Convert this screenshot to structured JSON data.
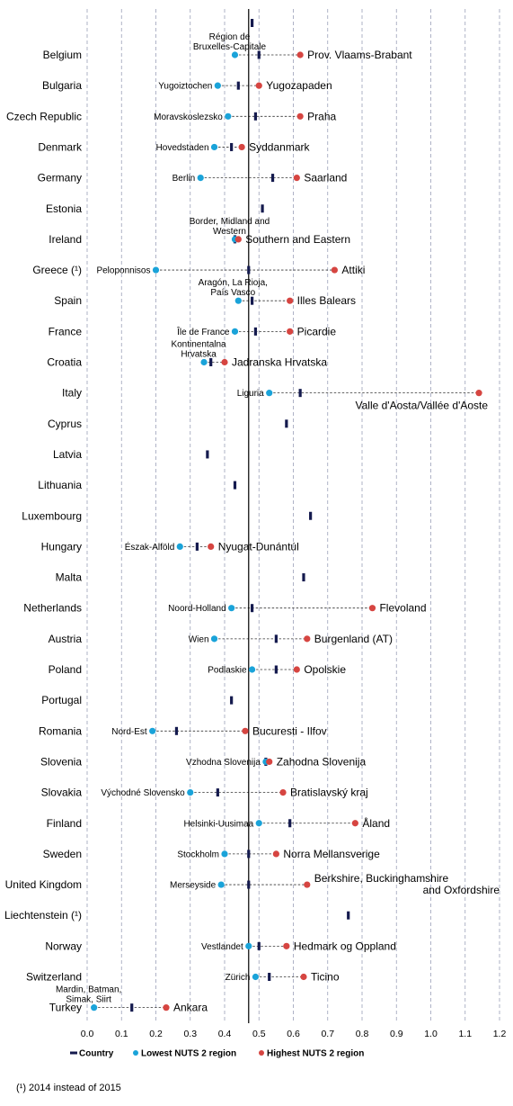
{
  "chart_data": {
    "type": "scatter",
    "xlim": [
      0,
      1.2
    ],
    "xticks": [
      "0.0",
      "0.1",
      "0.2",
      "0.3",
      "0.4",
      "0.5",
      "0.6",
      "0.7",
      "0.8",
      "0.9",
      "1.0",
      "1.1",
      "1.2"
    ],
    "grid": true,
    "reference_line": 0.47,
    "top_marker": 0.48,
    "legend": {
      "position": "bottom",
      "items": [
        {
          "label": "Country",
          "marker": "bar"
        },
        {
          "label": "Lowest NUTS 2 region",
          "marker": "dot",
          "color": "#1aa3d9"
        },
        {
          "label": "Highest NUTS 2 region",
          "marker": "dot",
          "color": "#d64541"
        }
      ]
    },
    "footnote": "(¹)  2014 instead of 2015",
    "series": [
      {
        "country": "Belgium",
        "value": 0.5,
        "low": 0.43,
        "low_region": [
          "Région de",
          "Bruxelles-Capitale"
        ],
        "high": 0.62,
        "high_region": [
          "Prov. Vlaams-Brabant"
        ]
      },
      {
        "country": "Bulgaria",
        "value": 0.44,
        "low": 0.38,
        "low_region": [
          "Yugoiztochen"
        ],
        "high": 0.5,
        "high_region": [
          "Yugozapaden"
        ]
      },
      {
        "country": "Czech Republic",
        "value": 0.49,
        "low": 0.41,
        "low_region": [
          "Moravskoslezsko"
        ],
        "high": 0.62,
        "high_region": [
          "Praha"
        ]
      },
      {
        "country": "Denmark",
        "value": 0.42,
        "low": 0.37,
        "low_region": [
          "Hovedstaden"
        ],
        "high": 0.45,
        "high_region": [
          "Syddanmark"
        ]
      },
      {
        "country": "Germany",
        "value": 0.54,
        "low": 0.33,
        "low_region": [
          "Berlin"
        ],
        "high": 0.61,
        "high_region": [
          "Saarland"
        ]
      },
      {
        "country": "Estonia",
        "value": 0.51
      },
      {
        "country": "Ireland",
        "value": 0.43,
        "low": 0.43,
        "low_region": [
          "Border, Midland  and",
          "Western"
        ],
        "high": 0.44,
        "high_region": [
          "Southern and Eastern"
        ]
      },
      {
        "country": "Greece (¹)",
        "value": 0.47,
        "low": 0.2,
        "low_region": [
          "Peloponnisos"
        ],
        "high": 0.72,
        "high_region": [
          "Attiki"
        ]
      },
      {
        "country": "Spain",
        "value": 0.48,
        "low": 0.44,
        "low_region": [
          "Aragón, La Rioja,",
          "País Vasco"
        ],
        "high": 0.59,
        "high_region": [
          "Illes Balears"
        ]
      },
      {
        "country": "France",
        "value": 0.49,
        "low": 0.43,
        "low_region": [
          "Île de France"
        ],
        "high": 0.59,
        "high_region": [
          "Picardie"
        ]
      },
      {
        "country": "Croatia",
        "value": 0.36,
        "low": 0.34,
        "low_region": [
          "Kontinentalna",
          "Hrvatska"
        ],
        "high": 0.4,
        "high_region": [
          "Jadranska Hrvatska"
        ]
      },
      {
        "country": "Italy",
        "value": 0.62,
        "low": 0.53,
        "low_region": [
          "Liguria"
        ],
        "high": 1.14,
        "high_region": [
          "Valle d'Aosta/Vallée d'Aoste"
        ]
      },
      {
        "country": "Cyprus",
        "value": 0.58
      },
      {
        "country": "Latvia",
        "value": 0.35
      },
      {
        "country": "Lithuania",
        "value": 0.43
      },
      {
        "country": "Luxembourg",
        "value": 0.65
      },
      {
        "country": "Hungary",
        "value": 0.32,
        "low": 0.27,
        "low_region": [
          "Észak-Alföld"
        ],
        "high": 0.36,
        "high_region": [
          "Nyugat-Dunántúl"
        ]
      },
      {
        "country": "Malta",
        "value": 0.63
      },
      {
        "country": "Netherlands",
        "value": 0.48,
        "low": 0.42,
        "low_region": [
          "Noord-Holland"
        ],
        "high": 0.83,
        "high_region": [
          "Flevoland"
        ]
      },
      {
        "country": "Austria",
        "value": 0.55,
        "low": 0.37,
        "low_region": [
          "Wien"
        ],
        "high": 0.64,
        "high_region": [
          "Burgenland (AT)"
        ]
      },
      {
        "country": "Poland",
        "value": 0.55,
        "low": 0.48,
        "low_region": [
          "Podlaskie"
        ],
        "high": 0.61,
        "high_region": [
          "Opolskie"
        ]
      },
      {
        "country": "Portugal",
        "value": 0.42
      },
      {
        "country": "Romania",
        "value": 0.26,
        "low": 0.19,
        "low_region": [
          "Nord-Est"
        ],
        "high": 0.46,
        "high_region": [
          "Bucuresti - Ilfov"
        ]
      },
      {
        "country": "Slovenia",
        "value": 0.52,
        "low": 0.52,
        "low_region": [
          "Vzhodna Slovenija"
        ],
        "high": 0.53,
        "high_region": [
          "Zahodna Slovenija"
        ]
      },
      {
        "country": "Slovakia",
        "value": 0.38,
        "low": 0.3,
        "low_region": [
          "Východné Slovensko"
        ],
        "high": 0.57,
        "high_region": [
          "Bratislavský kraj"
        ]
      },
      {
        "country": "Finland",
        "value": 0.59,
        "low": 0.5,
        "low_region": [
          "Helsinki-Uusimaa"
        ],
        "high": 0.78,
        "high_region": [
          "Åland"
        ]
      },
      {
        "country": "Sweden",
        "value": 0.47,
        "low": 0.4,
        "low_region": [
          "Stockholm"
        ],
        "high": 0.55,
        "high_region": [
          "Norra Mellansverige"
        ]
      },
      {
        "country": "United Kingdom",
        "value": 0.47,
        "low": 0.39,
        "low_region": [
          "Merseyside"
        ],
        "high": 0.64,
        "high_region": [
          "Berkshire, Buckinghamshire",
          "and Oxfordshire"
        ]
      },
      {
        "country": "Liechtenstein (¹)",
        "value": 0.76
      },
      {
        "country": "Norway",
        "value": 0.5,
        "low": 0.47,
        "low_region": [
          "Vestlandet"
        ],
        "high": 0.58,
        "high_region": [
          "Hedmark og Oppland"
        ]
      },
      {
        "country": "Switzerland",
        "value": 0.53,
        "low": 0.49,
        "low_region": [
          "Zürich"
        ],
        "high": 0.63,
        "high_region": [
          "Ticino"
        ]
      },
      {
        "country": "Turkey",
        "value": 0.13,
        "low": 0.02,
        "low_region": [
          "Mardin, Batman,",
          "Simak, Siirt"
        ],
        "high": 0.23,
        "high_region": [
          "Ankara"
        ]
      }
    ]
  }
}
